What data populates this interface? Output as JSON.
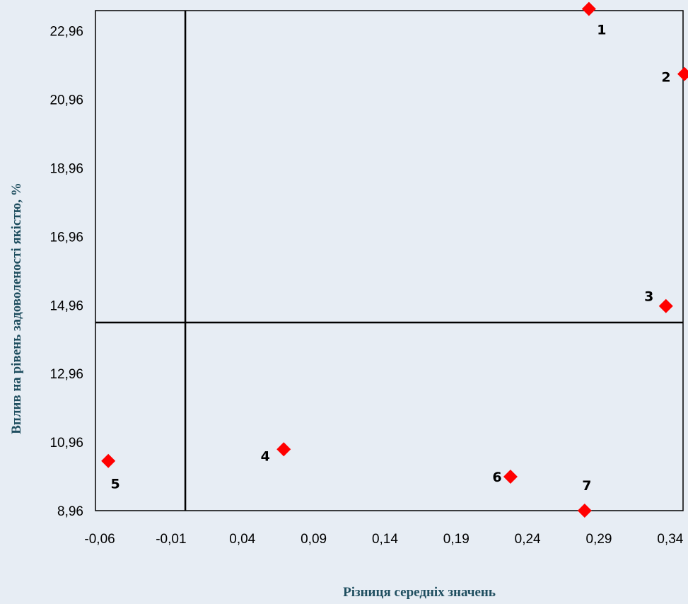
{
  "chart_data": {
    "type": "scatter",
    "xlabel": "Різниця середніх значень",
    "ylabel": "Вплив на рівень задоволеності якістю, %",
    "xlim": [
      -0.06,
      0.35
    ],
    "ylim": [
      8.96,
      23.6
    ],
    "x_ticks": [
      "-0,06",
      "-0,01",
      "0,04",
      "0,09",
      "0,14",
      "0,19",
      "0,24",
      "0,29",
      "0,34"
    ],
    "x_tick_values": [
      -0.06,
      -0.01,
      0.04,
      0.09,
      0.14,
      0.19,
      0.24,
      0.29,
      0.34
    ],
    "y_ticks": [
      "8,96",
      "10,96",
      "12,96",
      "14,96",
      "16,96",
      "18,96",
      "20,96",
      "22,96"
    ],
    "y_tick_values": [
      8.96,
      10.96,
      12.96,
      14.96,
      16.96,
      18.96,
      20.96,
      22.96
    ],
    "reference_lines": {
      "x": 0.0,
      "y": 14.45
    },
    "marker_color": "#ff0000",
    "points": [
      {
        "label": "1",
        "x": 0.283,
        "y": 23.6
      },
      {
        "label": "2",
        "x": 0.35,
        "y": 21.7
      },
      {
        "label": "3",
        "x": 0.337,
        "y": 14.93
      },
      {
        "label": "4",
        "x": 0.069,
        "y": 10.75
      },
      {
        "label": "5",
        "x": -0.054,
        "y": 10.41
      },
      {
        "label": "6",
        "x": 0.228,
        "y": 9.95
      },
      {
        "label": "7",
        "x": 0.28,
        "y": 8.96
      }
    ],
    "grid": false
  }
}
